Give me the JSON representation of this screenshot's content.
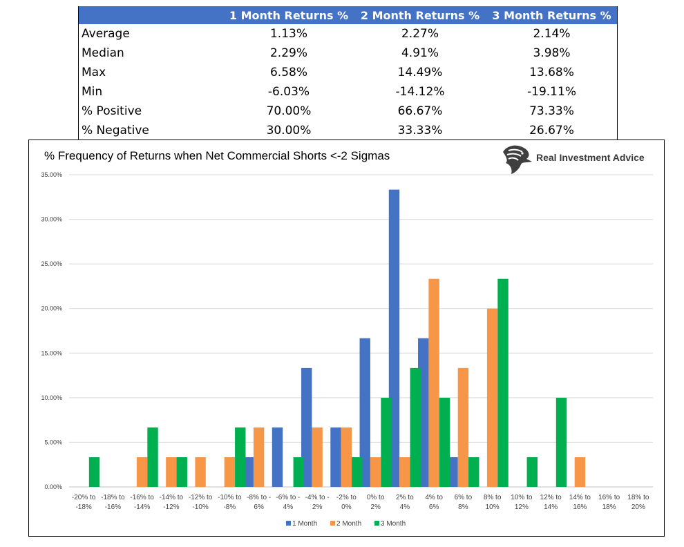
{
  "table": {
    "headers": [
      "",
      "1 Month Returns %",
      "2 Month Returns %",
      "3 Month Returns %"
    ],
    "rows": [
      {
        "label": "Average",
        "values": [
          "1.13%",
          "2.27%",
          "2.14%"
        ]
      },
      {
        "label": "Median",
        "values": [
          "2.29%",
          "4.91%",
          "3.98%"
        ]
      },
      {
        "label": "Max",
        "values": [
          "6.58%",
          "14.49%",
          "13.68%"
        ]
      },
      {
        "label": "Min",
        "values": [
          "-6.03%",
          "-14.12%",
          "-19.11%"
        ]
      },
      {
        "label": "% Positive",
        "values": [
          "70.00%",
          "66.67%",
          "73.33%"
        ]
      },
      {
        "label": "% Negative",
        "values": [
          "30.00%",
          "33.33%",
          "26.67%"
        ]
      }
    ]
  },
  "brand": {
    "name": "Real Investment Advice",
    "logo_icon": "eagle-head-icon"
  },
  "colors": {
    "header_bg": "#4472c4",
    "series_1": "#4472c4",
    "series_2": "#f79646",
    "series_3": "#00b050",
    "grid": "#d9d9d9"
  },
  "chart_data": {
    "type": "bar",
    "title": "% Frequency of Returns when Net Commercial Shorts <-2 Sigmas",
    "xlabel": "",
    "ylabel": "",
    "ylim": [
      0,
      35
    ],
    "yticks": [
      "0.00%",
      "5.00%",
      "10.00%",
      "15.00%",
      "20.00%",
      "25.00%",
      "30.00%",
      "35.00%"
    ],
    "grid": true,
    "legend_position": "bottom",
    "categories": [
      [
        "-20% to",
        "-18%"
      ],
      [
        "-18% to",
        "-16%"
      ],
      [
        "-16% to",
        "-14%"
      ],
      [
        "-14% to",
        "-12%"
      ],
      [
        "-12% to",
        "-10%"
      ],
      [
        "-10% to",
        "-8%"
      ],
      [
        "-8% to -",
        "6%"
      ],
      [
        "-6% to -",
        "4%"
      ],
      [
        "-4% to -",
        "2%"
      ],
      [
        "-2% to",
        "0%"
      ],
      [
        "0% to",
        "2%"
      ],
      [
        "2% to",
        "4%"
      ],
      [
        "4% to",
        "6%"
      ],
      [
        "6% to",
        "8%"
      ],
      [
        "8% to",
        "10%"
      ],
      [
        "10% to",
        "12%"
      ],
      [
        "12% to",
        "14%"
      ],
      [
        "14% to",
        "16%"
      ],
      [
        "16% to",
        "18%"
      ],
      [
        "18% to",
        "20%"
      ]
    ],
    "series": [
      {
        "name": "1 Month",
        "color": "#4472c4",
        "values": [
          0,
          0,
          0,
          0,
          0,
          0,
          3.33,
          6.67,
          13.33,
          6.67,
          16.67,
          33.33,
          16.67,
          3.33,
          0,
          0,
          0,
          0,
          0,
          0
        ]
      },
      {
        "name": "2 Month",
        "color": "#f79646",
        "values": [
          0,
          0,
          3.33,
          3.33,
          3.33,
          3.33,
          6.67,
          0,
          6.67,
          6.67,
          3.33,
          3.33,
          23.33,
          13.33,
          20.0,
          0,
          0,
          3.33,
          0,
          0
        ]
      },
      {
        "name": "3 Month",
        "color": "#00b050",
        "values": [
          3.33,
          0,
          6.67,
          3.33,
          0,
          6.67,
          0,
          3.33,
          0,
          3.33,
          10.0,
          13.33,
          10.0,
          3.33,
          23.33,
          3.33,
          10.0,
          0,
          0,
          0
        ]
      }
    ]
  }
}
